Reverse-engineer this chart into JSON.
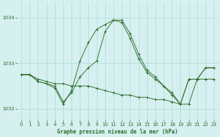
{
  "title": "Graphe pression niveau de la mer (hPa)",
  "background_color": "#d6f0ef",
  "grid_color": "#a8d8d4",
  "line_color": "#2d6e2d",
  "xlim": [
    -0.5,
    23.5
  ],
  "ylim": [
    1031.75,
    1034.35
  ],
  "yticks": [
    1032,
    1033,
    1034
  ],
  "xticks": [
    0,
    1,
    2,
    3,
    4,
    5,
    6,
    7,
    8,
    9,
    10,
    11,
    12,
    13,
    14,
    15,
    16,
    17,
    18,
    19,
    20,
    21,
    22,
    23
  ],
  "series": [
    {
      "x": [
        0,
        1,
        2,
        3,
        4,
        5,
        6,
        7,
        8,
        9,
        10,
        11,
        12,
        13,
        14,
        15,
        16,
        17,
        18,
        19,
        20,
        21,
        22,
        23
      ],
      "y": [
        1032.75,
        1032.75,
        1032.6,
        1032.55,
        1032.45,
        1032.1,
        1032.4,
        1033.05,
        1033.45,
        1033.75,
        1033.85,
        1033.95,
        1033.95,
        1033.65,
        1033.2,
        1032.85,
        1032.7,
        1032.5,
        1032.35,
        1032.1,
        1032.65,
        1032.65,
        1032.9,
        1032.9
      ]
    },
    {
      "x": [
        0,
        1,
        2,
        3,
        4,
        5,
        6,
        7,
        8,
        9,
        10,
        11,
        12,
        13,
        14,
        15,
        16,
        17,
        18,
        19,
        20,
        21,
        22,
        23
      ],
      "y": [
        1032.75,
        1032.75,
        1032.6,
        1032.55,
        1032.5,
        1032.15,
        1032.35,
        1032.7,
        1032.9,
        1033.05,
        1033.7,
        1033.95,
        1033.9,
        1033.55,
        1033.1,
        1032.8,
        1032.65,
        1032.5,
        1032.3,
        1032.1,
        1032.1,
        1032.65,
        1032.65,
        1032.65
      ]
    },
    {
      "x": [
        0,
        1,
        2,
        3,
        4,
        5,
        6,
        7,
        8,
        9,
        10,
        11,
        12,
        13,
        14,
        15,
        16,
        17,
        18,
        19,
        20,
        21,
        22,
        23
      ],
      "y": [
        1032.75,
        1032.75,
        1032.65,
        1032.6,
        1032.55,
        1032.55,
        1032.5,
        1032.5,
        1032.5,
        1032.45,
        1032.4,
        1032.35,
        1032.3,
        1032.3,
        1032.25,
        1032.25,
        1032.2,
        1032.2,
        1032.15,
        1032.1,
        1032.65,
        1032.65,
        1032.9,
        1032.9
      ]
    }
  ]
}
